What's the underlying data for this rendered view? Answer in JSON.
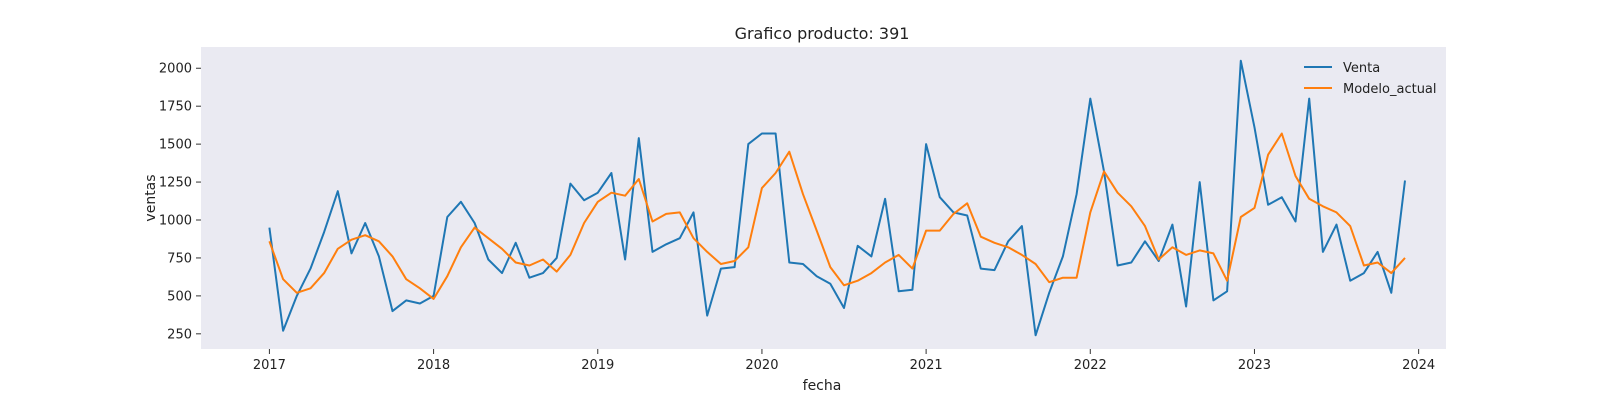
{
  "chart_data": {
    "type": "line",
    "title": "Grafico producto: 391",
    "xlabel": "fecha",
    "ylabel": "ventas",
    "x_ticks": [
      "2017",
      "2018",
      "2019",
      "2020",
      "2021",
      "2022",
      "2023",
      "2024"
    ],
    "y_ticks": [
      250,
      500,
      750,
      1000,
      1250,
      1500,
      1750,
      2000
    ],
    "xlim": [
      "2016-08",
      "2024-03"
    ],
    "ylim": [
      150,
      2140
    ],
    "grid": false,
    "legend_position": "top-right",
    "background_color": "#eaeaf2",
    "start_month": "2017-01",
    "series": [
      {
        "name": "Venta",
        "color": "#1f77b4",
        "values": [
          950,
          270,
          500,
          680,
          920,
          1190,
          780,
          980,
          760,
          400,
          470,
          450,
          500,
          1020,
          1120,
          980,
          740,
          650,
          850,
          620,
          650,
          750,
          1240,
          1130,
          1180,
          1310,
          740,
          1540,
          790,
          840,
          880,
          1050,
          370,
          680,
          690,
          1500,
          1570,
          1570,
          720,
          710,
          630,
          580,
          420,
          830,
          760,
          1140,
          530,
          540,
          1500,
          1150,
          1050,
          1030,
          680,
          670,
          860,
          960,
          240,
          520,
          760,
          1170,
          1800,
          1320,
          700,
          720,
          860,
          730,
          970,
          430,
          1250,
          470,
          530,
          2050,
          1610,
          1100,
          1150,
          990,
          1800,
          790,
          970,
          600,
          650,
          790,
          520,
          1260
        ]
      },
      {
        "name": "Modelo_actual",
        "color": "#ff7f0e",
        "values": [
          860,
          610,
          520,
          550,
          650,
          810,
          870,
          900,
          860,
          760,
          610,
          550,
          480,
          630,
          820,
          950,
          880,
          810,
          720,
          700,
          740,
          660,
          770,
          980,
          1120,
          1180,
          1160,
          1270,
          990,
          1040,
          1050,
          880,
          790,
          710,
          730,
          820,
          1210,
          1310,
          1450,
          1170,
          930,
          690,
          570,
          600,
          650,
          720,
          770,
          680,
          930,
          930,
          1040,
          1110,
          890,
          850,
          820,
          770,
          710,
          590,
          620,
          620,
          1050,
          1320,
          1180,
          1090,
          960,
          740,
          820,
          770,
          800,
          780,
          600,
          1020,
          1080,
          1430,
          1570,
          1290,
          1140,
          1090,
          1050,
          960,
          700,
          720,
          650,
          750
        ]
      }
    ]
  }
}
